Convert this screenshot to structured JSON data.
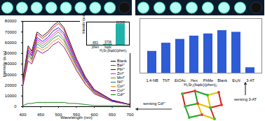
{
  "chart_data": [
    {
      "type": "line",
      "xlabel": "Wavelength (nm)",
      "ylabel": "Intensity (a.u.)",
      "x": [
        400,
        415,
        425,
        440,
        455,
        470,
        485,
        500,
        515,
        530,
        550,
        575,
        600,
        650,
        700
      ],
      "xlim": [
        400,
        700
      ],
      "xticks": [
        400,
        450,
        500,
        550,
        600,
        650,
        700
      ],
      "ylim": [
        0,
        80000
      ],
      "yticks": [
        0,
        10000,
        20000,
        30000,
        40000,
        50000,
        60000,
        70000,
        80000
      ],
      "legend": "right",
      "series": [
        {
          "name": "Blank",
          "color": "#000000",
          "values": [
            25000,
            57000,
            52000,
            70000,
            66000,
            70000,
            76000,
            80000,
            74000,
            62000,
            45000,
            28000,
            16000,
            6000,
            2000
          ]
        },
        {
          "name": "Ba²⁺",
          "color": "#ff0000",
          "values": [
            24000,
            55000,
            50000,
            68000,
            64000,
            68000,
            74000,
            78000,
            72000,
            60000,
            44000,
            27000,
            16000,
            6000,
            2000
          ]
        },
        {
          "name": "Pb²⁺",
          "color": "#0000ff",
          "values": [
            23000,
            53000,
            48000,
            65000,
            61000,
            65000,
            71000,
            74000,
            69000,
            58000,
            42000,
            26000,
            15000,
            6000,
            2000
          ]
        },
        {
          "name": "Zn²⁺",
          "color": "#ff00ff",
          "values": [
            22000,
            51000,
            47000,
            63000,
            59000,
            63000,
            68000,
            72000,
            67000,
            56000,
            40000,
            25000,
            14000,
            5000,
            2000
          ]
        },
        {
          "name": "Mn²⁺",
          "color": "#808000",
          "values": [
            22000,
            50000,
            45000,
            61000,
            57000,
            61000,
            66000,
            70000,
            64000,
            54000,
            39000,
            24000,
            14000,
            5000,
            2000
          ]
        },
        {
          "name": "Ni²⁺",
          "color": "#008080",
          "values": [
            21000,
            48000,
            44000,
            59000,
            55000,
            59000,
            64000,
            67000,
            62000,
            52000,
            38000,
            24000,
            13000,
            5000,
            2000
          ]
        },
        {
          "name": "Co²⁺",
          "color": "#ff8000",
          "values": [
            20000,
            46000,
            42000,
            56000,
            53000,
            56000,
            61000,
            64000,
            59000,
            50000,
            36000,
            22000,
            13000,
            5000,
            2000
          ]
        },
        {
          "name": "Cu²⁺",
          "color": "#800080",
          "values": [
            19000,
            43000,
            40000,
            53000,
            50000,
            53000,
            58000,
            61000,
            56000,
            47000,
            34000,
            21000,
            12000,
            5000,
            2000
          ]
        },
        {
          "name": "Cd²⁺",
          "color": "#008000",
          "values": [
            1000,
            3000,
            3000,
            4000,
            4000,
            4000,
            4000,
            4000,
            4000,
            3000,
            3000,
            2000,
            1000,
            1000,
            1000
          ]
        }
      ],
      "annotations": [
        "sensing Cd²⁺"
      ]
    },
    {
      "type": "bar",
      "ylabel": "Intensity (a.u.)",
      "categories": [
        "phen",
        "bqdc",
        "H₂Sr₂(bqdc)(phen)₂"
      ],
      "values": [
        853,
        3736,
        81580
      ],
      "ylim": [
        0,
        90000
      ],
      "yticks": [],
      "tick_labels": "x",
      "data_labels": true,
      "color": "#20b2aa"
    },
    {
      "type": "bar",
      "categories": [
        "1,4-NB",
        "TNT",
        "EtOAc",
        "Hex",
        "PhMe",
        "Blank",
        "Et₃N",
        "3-AT"
      ],
      "values": [
        40,
        55,
        62,
        68,
        72,
        78,
        75,
        10
      ],
      "ylim": [
        0,
        100
      ],
      "yticks": [],
      "tick_labels": "x",
      "color": "#2e5bd6",
      "annotations": [
        "sensing 3-AT",
        "H₂Sr₂(bqdc)(phen)₂"
      ]
    }
  ]
}
